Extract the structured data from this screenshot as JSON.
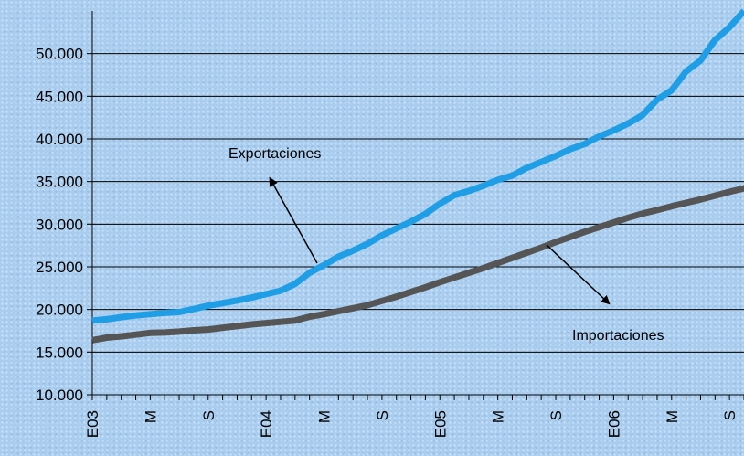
{
  "chart_data": {
    "type": "line",
    "title": "",
    "xlabel": "",
    "ylabel": "",
    "ylim": [
      10000,
      55000
    ],
    "y_ticks": [
      10000,
      15000,
      20000,
      25000,
      30000,
      35000,
      40000,
      45000,
      50000
    ],
    "y_tick_labels": [
      "10.000",
      "15.000",
      "20.000",
      "25.000",
      "30.000",
      "35.000",
      "40.000",
      "45.000",
      "50.000"
    ],
    "grid": true,
    "x_tick_labels": [
      {
        "month_index": 0,
        "label": "E03"
      },
      {
        "month_index": 4,
        "label": "M"
      },
      {
        "month_index": 8,
        "label": "S"
      },
      {
        "month_index": 12,
        "label": "E04"
      },
      {
        "month_index": 16,
        "label": "M"
      },
      {
        "month_index": 20,
        "label": "S"
      },
      {
        "month_index": 24,
        "label": "E05"
      },
      {
        "month_index": 28,
        "label": "M"
      },
      {
        "month_index": 32,
        "label": "S"
      },
      {
        "month_index": 36,
        "label": "E06"
      },
      {
        "month_index": 40,
        "label": "M"
      },
      {
        "month_index": 44,
        "label": "S"
      }
    ],
    "series": [
      {
        "name": "Exportaciones",
        "color": "#1f9ee6",
        "values": [
          18700,
          18850,
          19100,
          19300,
          19450,
          19600,
          19700,
          20050,
          20450,
          20750,
          21050,
          21400,
          21800,
          22200,
          23000,
          24300,
          25200,
          26200,
          26900,
          27700,
          28700,
          29500,
          30300,
          31200,
          32400,
          33400,
          33900,
          34500,
          35200,
          35700,
          36600,
          37300,
          38000,
          38800,
          39400,
          40300,
          41000,
          41800,
          42800,
          44600,
          45700,
          47900,
          49200,
          51600,
          53100,
          55000
        ]
      },
      {
        "name": "Importaciones",
        "color": "#555555",
        "values": [
          16400,
          16700,
          16850,
          17050,
          17250,
          17300,
          17400,
          17550,
          17650,
          17850,
          18050,
          18250,
          18400,
          18550,
          18700,
          19150,
          19450,
          19800,
          20150,
          20500,
          21000,
          21500,
          22050,
          22600,
          23200,
          23750,
          24300,
          24850,
          25450,
          26050,
          26650,
          27250,
          27900,
          28500,
          29100,
          29650,
          30200,
          30750,
          31250,
          31650,
          32100,
          32500,
          32900,
          33350,
          33800,
          34200,
          35050
        ]
      }
    ],
    "annotations": [
      {
        "text": "Exportaciones",
        "series": "Exportaciones"
      },
      {
        "text": "Importaciones",
        "series": "Importaciones"
      }
    ]
  }
}
